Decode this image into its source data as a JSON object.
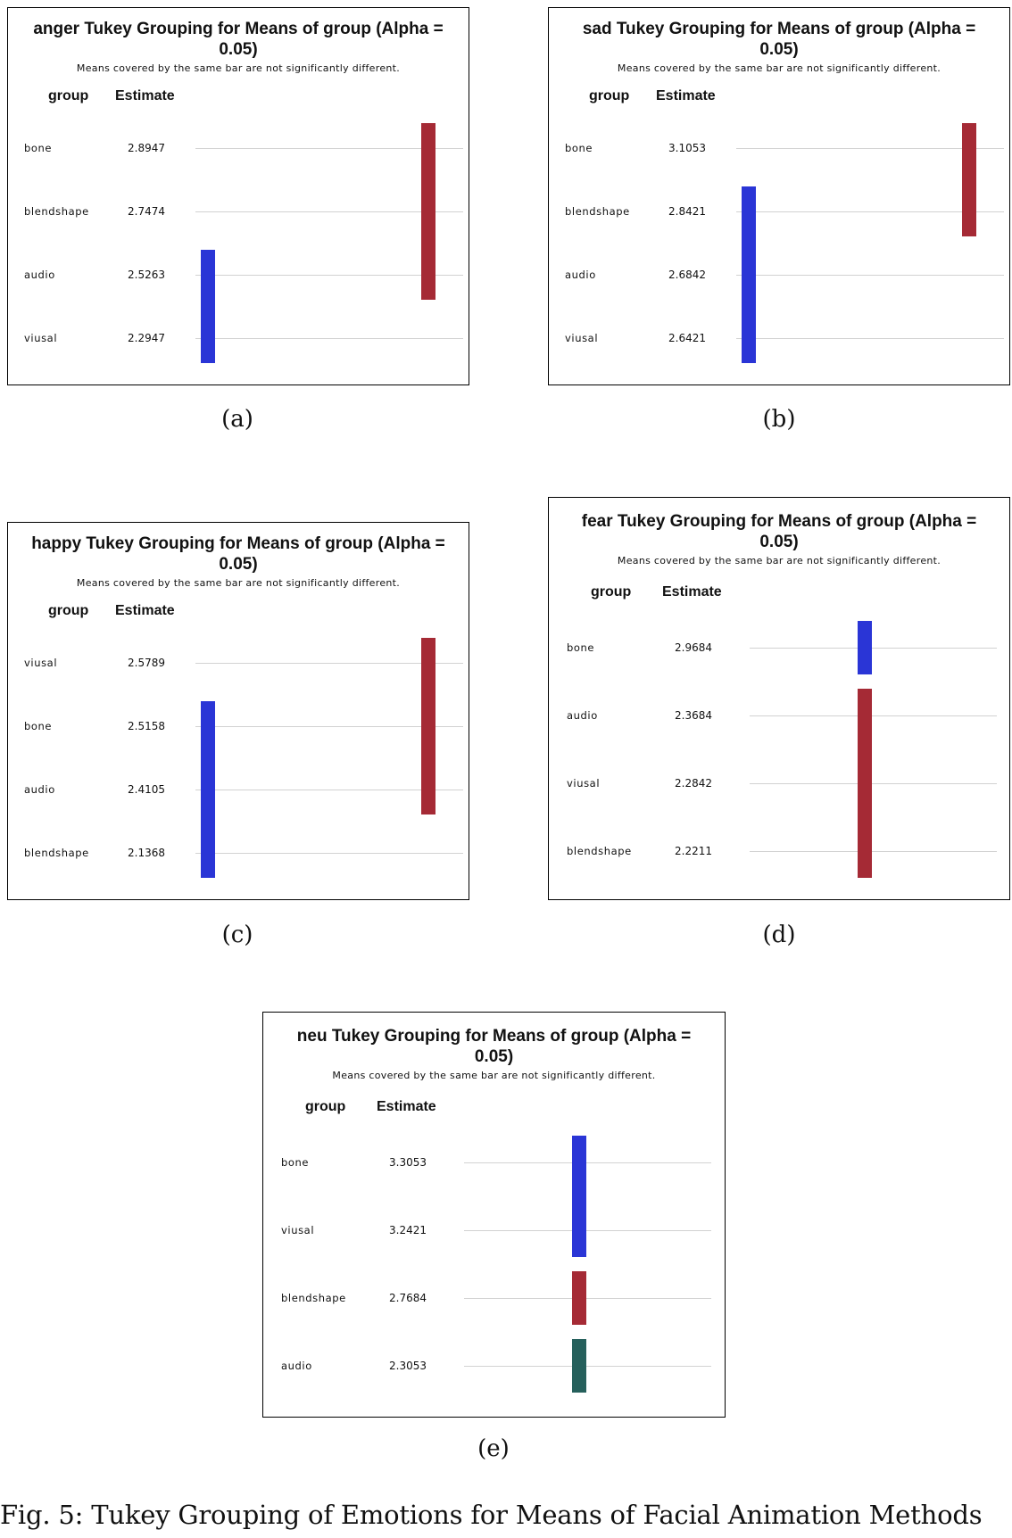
{
  "chart_data": [
    {
      "type": "table",
      "title": "anger Tukey Grouping for Means of group (Alpha = 0.05)",
      "subtitle": "Means covered by the same bar are not significantly different.",
      "col_group": "group",
      "col_estimate": "Estimate",
      "rows": [
        {
          "group": "bone",
          "estimate": "2.8947"
        },
        {
          "group": "blendshape",
          "estimate": "2.7474"
        },
        {
          "group": "audio",
          "estimate": "2.5263"
        },
        {
          "group": "viusal",
          "estimate": "2.2947"
        }
      ],
      "groupings": [
        {
          "color": "#2a35d6",
          "from_row": 2,
          "to_row": 3
        },
        {
          "color": "#a52a35",
          "from_row": 0,
          "to_row": 2
        }
      ],
      "caption": "(a)"
    },
    {
      "type": "table",
      "title": "sad Tukey Grouping for Means of group (Alpha = 0.05)",
      "subtitle": "Means covered by the same bar are not significantly different.",
      "col_group": "group",
      "col_estimate": "Estimate",
      "rows": [
        {
          "group": "bone",
          "estimate": "3.1053"
        },
        {
          "group": "blendshape",
          "estimate": "2.8421"
        },
        {
          "group": "audio",
          "estimate": "2.6842"
        },
        {
          "group": "viusal",
          "estimate": "2.6421"
        }
      ],
      "groupings": [
        {
          "color": "#2a35d6",
          "from_row": 1,
          "to_row": 3
        },
        {
          "color": "#a52a35",
          "from_row": 0,
          "to_row": 1
        }
      ],
      "caption": "(b)"
    },
    {
      "type": "table",
      "title": "happy Tukey Grouping for Means of group (Alpha = 0.05)",
      "subtitle": "Means covered by the same bar are not significantly different.",
      "col_group": "group",
      "col_estimate": "Estimate",
      "rows": [
        {
          "group": "viusal",
          "estimate": "2.5789"
        },
        {
          "group": "bone",
          "estimate": "2.5158"
        },
        {
          "group": "audio",
          "estimate": "2.4105"
        },
        {
          "group": "blendshape",
          "estimate": "2.1368"
        }
      ],
      "groupings": [
        {
          "color": "#2a35d6",
          "from_row": 1,
          "to_row": 3
        },
        {
          "color": "#a52a35",
          "from_row": 0,
          "to_row": 2
        }
      ],
      "caption": "(c)"
    },
    {
      "type": "table",
      "title": "fear Tukey Grouping for Means of group (Alpha = 0.05)",
      "subtitle": "Means covered by the same bar are not significantly different.",
      "col_group": "group",
      "col_estimate": "Estimate",
      "rows": [
        {
          "group": "bone",
          "estimate": "2.9684"
        },
        {
          "group": "audio",
          "estimate": "2.3684"
        },
        {
          "group": "viusal",
          "estimate": "2.2842"
        },
        {
          "group": "blendshape",
          "estimate": "2.2211"
        }
      ],
      "groupings": [
        {
          "color": "#2a35d6",
          "from_row": 0,
          "to_row": 0
        },
        {
          "color": "#a52a35",
          "from_row": 1,
          "to_row": 3
        }
      ],
      "caption": "(d)"
    },
    {
      "type": "table",
      "title": "neu Tukey Grouping for Means of group (Alpha = 0.05)",
      "subtitle": "Means covered by the same bar are not significantly different.",
      "col_group": "group",
      "col_estimate": "Estimate",
      "rows": [
        {
          "group": "bone",
          "estimate": "3.3053"
        },
        {
          "group": "viusal",
          "estimate": "3.2421"
        },
        {
          "group": "blendshape",
          "estimate": "2.7684"
        },
        {
          "group": "audio",
          "estimate": "2.3053"
        }
      ],
      "groupings": [
        {
          "color": "#2a35d6",
          "from_row": 0,
          "to_row": 1
        },
        {
          "color": "#a52a35",
          "from_row": 2,
          "to_row": 2
        },
        {
          "color": "#26605c",
          "from_row": 3,
          "to_row": 3
        }
      ],
      "caption": "(e)"
    }
  ],
  "figure_caption": "Fig. 5: Tukey Grouping of Emotions for Means of Facial Animation Methods"
}
